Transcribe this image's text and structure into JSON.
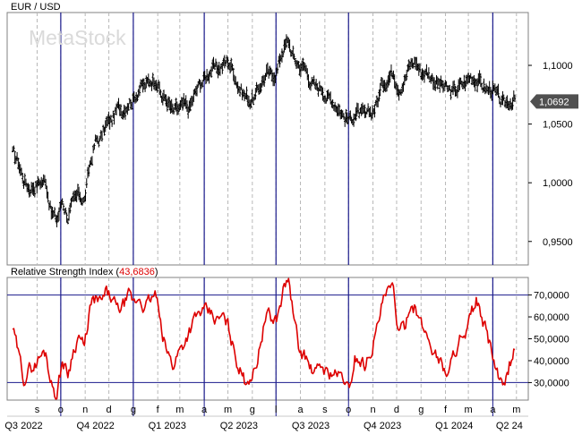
{
  "chart_data": [
    {
      "type": "line",
      "title": "EUR / USD",
      "watermark": "MetaStock",
      "ylim": [
        0.93,
        1.145
      ],
      "y_ticks": [
        {
          "label": "1,1000",
          "value": 1.1
        },
        {
          "label": "1,0500",
          "value": 1.05
        },
        {
          "label": "1,0000",
          "value": 1.0
        },
        {
          "label": "0,9500",
          "value": 0.95
        }
      ],
      "last_value_label": "1,0692",
      "last_value": 1.0692,
      "series": [
        {
          "style": "ohlc-bars",
          "color": "#000000",
          "x": [
            "2022-08-01",
            "2022-08-08",
            "2022-08-15",
            "2022-08-22",
            "2022-08-29",
            "2022-09-05",
            "2022-09-12",
            "2022-09-19",
            "2022-09-26",
            "2022-10-03",
            "2022-10-10",
            "2022-10-17",
            "2022-10-24",
            "2022-10-31",
            "2022-11-07",
            "2022-11-14",
            "2022-11-21",
            "2022-11-28",
            "2022-12-05",
            "2022-12-12",
            "2022-12-19",
            "2022-12-26",
            "2023-01-02",
            "2023-01-09",
            "2023-01-16",
            "2023-01-23",
            "2023-01-30",
            "2023-02-06",
            "2023-02-13",
            "2023-02-20",
            "2023-02-27",
            "2023-03-06",
            "2023-03-13",
            "2023-03-20",
            "2023-03-27",
            "2023-04-03",
            "2023-04-10",
            "2023-04-17",
            "2023-04-24",
            "2023-05-01",
            "2023-05-08",
            "2023-05-15",
            "2023-05-22",
            "2023-05-29",
            "2023-06-05",
            "2023-06-12",
            "2023-06-19",
            "2023-06-26",
            "2023-07-03",
            "2023-07-10",
            "2023-07-17",
            "2023-07-24",
            "2023-07-31",
            "2023-08-07",
            "2023-08-14",
            "2023-08-21",
            "2023-08-28",
            "2023-09-04",
            "2023-09-11",
            "2023-09-18",
            "2023-09-25",
            "2023-10-02",
            "2023-10-09",
            "2023-10-16",
            "2023-10-23",
            "2023-10-30",
            "2023-11-06",
            "2023-11-13",
            "2023-11-20",
            "2023-11-27",
            "2023-12-04",
            "2023-12-11",
            "2023-12-18",
            "2023-12-25",
            "2024-01-01",
            "2024-01-08",
            "2024-01-15",
            "2024-01-22",
            "2024-01-29",
            "2024-02-05",
            "2024-02-12",
            "2024-02-19",
            "2024-02-26",
            "2024-03-04",
            "2024-03-11",
            "2024-03-18",
            "2024-03-25",
            "2024-04-01",
            "2024-04-08",
            "2024-04-15",
            "2024-04-22",
            "2024-04-29"
          ],
          "values": [
            1.025,
            1.018,
            1.003,
            0.996,
            0.998,
            1.001,
            1.002,
            0.975,
            0.968,
            0.985,
            0.972,
            0.982,
            0.99,
            0.985,
            1.015,
            1.035,
            1.038,
            1.05,
            1.053,
            1.063,
            1.063,
            1.07,
            1.072,
            1.082,
            1.082,
            1.087,
            1.09,
            1.073,
            1.07,
            1.06,
            1.062,
            1.065,
            1.063,
            1.075,
            1.085,
            1.09,
            1.098,
            1.096,
            1.1,
            1.104,
            1.096,
            1.082,
            1.075,
            1.071,
            1.073,
            1.085,
            1.093,
            1.09,
            1.098,
            1.115,
            1.12,
            1.105,
            1.1,
            1.098,
            1.087,
            1.08,
            1.082,
            1.073,
            1.07,
            1.065,
            1.057,
            1.053,
            1.06,
            1.058,
            1.055,
            1.06,
            1.068,
            1.085,
            1.09,
            1.095,
            1.082,
            1.088,
            1.1,
            1.104,
            1.094,
            1.095,
            1.09,
            1.085,
            1.082,
            1.078,
            1.077,
            1.082,
            1.085,
            1.091,
            1.089,
            1.083,
            1.079,
            1.08,
            1.071,
            1.065,
            1.07,
            1.072
          ]
        }
      ]
    },
    {
      "type": "line",
      "title": "Relative Strength Index",
      "value_label": "43,6836",
      "ylim": [
        22,
        78
      ],
      "y_ticks": [
        {
          "label": "70,0000",
          "value": 70
        },
        {
          "label": "60,0000",
          "value": 60
        },
        {
          "label": "50,0000",
          "value": 50
        },
        {
          "label": "40,0000",
          "value": 40
        },
        {
          "label": "30,0000",
          "value": 30
        }
      ],
      "reference_lines": [
        70,
        30
      ],
      "series": [
        {
          "color": "#dd0000",
          "x": [
            "2022-08-01",
            "2022-08-08",
            "2022-08-15",
            "2022-08-22",
            "2022-08-29",
            "2022-09-05",
            "2022-09-12",
            "2022-09-19",
            "2022-09-26",
            "2022-10-03",
            "2022-10-10",
            "2022-10-17",
            "2022-10-24",
            "2022-10-31",
            "2022-11-07",
            "2022-11-14",
            "2022-11-21",
            "2022-11-28",
            "2022-12-05",
            "2022-12-12",
            "2022-12-19",
            "2022-12-26",
            "2023-01-02",
            "2023-01-09",
            "2023-01-16",
            "2023-01-23",
            "2023-01-30",
            "2023-02-06",
            "2023-02-13",
            "2023-02-20",
            "2023-02-27",
            "2023-03-06",
            "2023-03-13",
            "2023-03-20",
            "2023-03-27",
            "2023-04-03",
            "2023-04-10",
            "2023-04-17",
            "2023-04-24",
            "2023-05-01",
            "2023-05-08",
            "2023-05-15",
            "2023-05-22",
            "2023-05-29",
            "2023-06-05",
            "2023-06-12",
            "2023-06-19",
            "2023-06-26",
            "2023-07-03",
            "2023-07-10",
            "2023-07-17",
            "2023-07-24",
            "2023-07-31",
            "2023-08-07",
            "2023-08-14",
            "2023-08-21",
            "2023-08-28",
            "2023-09-04",
            "2023-09-11",
            "2023-09-18",
            "2023-09-25",
            "2023-10-02",
            "2023-10-09",
            "2023-10-16",
            "2023-10-23",
            "2023-10-30",
            "2023-11-06",
            "2023-11-13",
            "2023-11-20",
            "2023-11-27",
            "2023-12-04",
            "2023-12-11",
            "2023-12-18",
            "2023-12-25",
            "2024-01-01",
            "2024-01-08",
            "2024-01-15",
            "2024-01-22",
            "2024-01-29",
            "2024-02-05",
            "2024-02-12",
            "2024-02-19",
            "2024-02-26",
            "2024-03-04",
            "2024-03-11",
            "2024-03-18",
            "2024-03-25",
            "2024-04-01",
            "2024-04-08",
            "2024-04-15",
            "2024-04-22",
            "2024-04-29"
          ],
          "values": [
            55,
            43,
            32,
            36,
            38,
            42,
            44,
            30,
            24,
            40,
            34,
            45,
            52,
            45,
            64,
            68,
            66,
            71,
            68,
            63,
            65,
            69,
            66,
            69,
            64,
            68,
            70,
            52,
            44,
            38,
            44,
            48,
            54,
            59,
            62,
            62,
            61,
            58,
            60,
            56,
            46,
            37,
            31,
            33,
            36,
            50,
            62,
            58,
            60,
            72,
            78,
            58,
            44,
            42,
            36,
            34,
            38,
            34,
            35,
            33,
            32,
            25,
            42,
            40,
            38,
            46,
            54,
            66,
            71,
            72,
            52,
            55,
            67,
            64,
            56,
            52,
            46,
            42,
            37,
            34,
            44,
            50,
            48,
            60,
            68,
            58,
            52,
            42,
            32,
            26,
            38,
            45
          ]
        }
      ]
    }
  ],
  "time_axis": {
    "month_ticks": [
      {
        "label": "s",
        "date": "2022-09-01"
      },
      {
        "label": "o",
        "date": "2022-10-01"
      },
      {
        "label": "n",
        "date": "2022-11-01"
      },
      {
        "label": "d",
        "date": "2022-12-01"
      },
      {
        "label": "g",
        "date": "2023-01-01"
      },
      {
        "label": "f",
        "date": "2023-02-01"
      },
      {
        "label": "m",
        "date": "2023-03-01"
      },
      {
        "label": "a",
        "date": "2023-04-01"
      },
      {
        "label": "m",
        "date": "2023-05-01"
      },
      {
        "label": "g",
        "date": "2023-06-01"
      },
      {
        "label": "l",
        "date": "2023-07-01"
      },
      {
        "label": "a",
        "date": "2023-08-01"
      },
      {
        "label": "s",
        "date": "2023-09-01"
      },
      {
        "label": "o",
        "date": "2023-10-01"
      },
      {
        "label": "n",
        "date": "2023-11-01"
      },
      {
        "label": "d",
        "date": "2023-12-01"
      },
      {
        "label": "g",
        "date": "2024-01-01"
      },
      {
        "label": "f",
        "date": "2024-02-01"
      },
      {
        "label": "m",
        "date": "2024-03-01"
      },
      {
        "label": "a",
        "date": "2024-04-01"
      },
      {
        "label": "m",
        "date": "2024-05-01"
      }
    ],
    "quarter_labels": [
      {
        "label": "Q3 2022",
        "date": "2022-08-15"
      },
      {
        "label": "Q4 2022",
        "date": "2022-11-14"
      },
      {
        "label": "Q1 2023",
        "date": "2023-02-13"
      },
      {
        "label": "Q2 2023",
        "date": "2023-05-15"
      },
      {
        "label": "Q3 2023",
        "date": "2023-08-14"
      },
      {
        "label": "Q4 2023",
        "date": "2023-11-13"
      },
      {
        "label": "Q1 2024",
        "date": "2024-02-12"
      },
      {
        "label": "Q2 24",
        "date": "2024-04-22"
      }
    ],
    "quarter_boundaries": [
      "2022-10-01",
      "2023-01-01",
      "2023-04-01",
      "2023-07-01",
      "2023-10-01",
      "2024-04-01"
    ]
  },
  "colors": {
    "price": "#000000",
    "rsi": "#dd0000",
    "rsi_value": "#dd0000",
    "quarter_line": "#1a1a8c",
    "month_grid": "#b8b8b8",
    "frame": "#808080",
    "last_value_box": "#505050"
  }
}
